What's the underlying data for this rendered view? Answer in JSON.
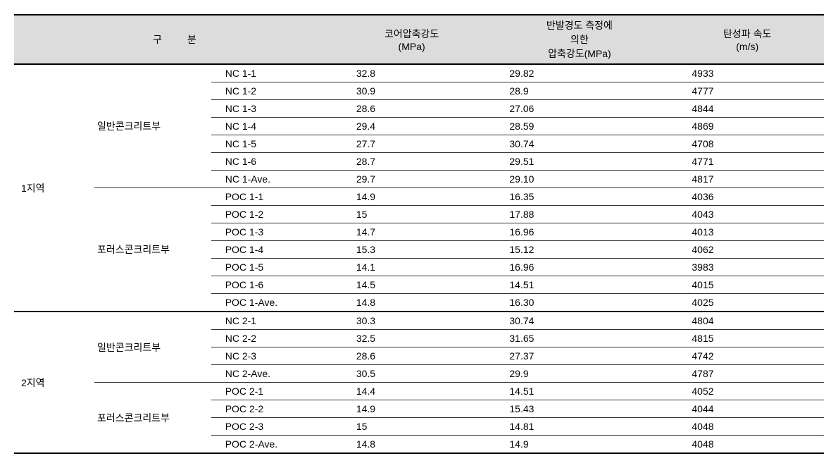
{
  "header": {
    "group_label": "구 분",
    "col1_line1": "코어압축강도",
    "col1_line2": "(MPa)",
    "col2_line1": "반발경도  측정에",
    "col2_line2": "의한",
    "col2_line3": "압축강도(MPa)",
    "col3_line1": "탄성파 속도",
    "col3_line2": "(m/s)"
  },
  "regions": [
    {
      "name": "1지역",
      "sections": [
        {
          "name": "일반콘크리트부",
          "rows": [
            {
              "id": "NC 1-1",
              "v1": "32.8",
              "v2": "29.82",
              "v3": "4933"
            },
            {
              "id": "NC 1-2",
              "v1": "30.9",
              "v2": "28.9",
              "v3": "4777"
            },
            {
              "id": "NC 1-3",
              "v1": "28.6",
              "v2": "27.06",
              "v3": "4844"
            },
            {
              "id": "NC 1-4",
              "v1": "29.4",
              "v2": "28.59",
              "v3": "4869"
            },
            {
              "id": "NC 1-5",
              "v1": "27.7",
              "v2": "30.74",
              "v3": "4708"
            },
            {
              "id": "NC 1-6",
              "v1": "28.7",
              "v2": "29.51",
              "v3": "4771"
            },
            {
              "id": "NC 1-Ave.",
              "v1": "29.7",
              "v2": "29.10",
              "v3": "4817"
            }
          ]
        },
        {
          "name": "포러스콘크리트부",
          "rows": [
            {
              "id": "POC 1-1",
              "v1": "14.9",
              "v2": "16.35",
              "v3": "4036"
            },
            {
              "id": "POC 1-2",
              "v1": "15",
              "v2": "17.88",
              "v3": "4043"
            },
            {
              "id": "POC 1-3",
              "v1": "14.7",
              "v2": "16.96",
              "v3": "4013"
            },
            {
              "id": "POC 1-4",
              "v1": "15.3",
              "v2": "15.12",
              "v3": "4062"
            },
            {
              "id": "POC 1-5",
              "v1": "14.1",
              "v2": "16.96",
              "v3": "3983"
            },
            {
              "id": "POC 1-6",
              "v1": "14.5",
              "v2": "14.51",
              "v3": "4015"
            },
            {
              "id": "POC 1-Ave.",
              "v1": "14.8",
              "v2": "16.30",
              "v3": "4025"
            }
          ]
        }
      ]
    },
    {
      "name": "2지역",
      "sections": [
        {
          "name": "일반콘크리트부",
          "rows": [
            {
              "id": "NC 2-1",
              "v1": "30.3",
              "v2": "30.74",
              "v3": "4804"
            },
            {
              "id": "NC 2-2",
              "v1": "32.5",
              "v2": "31.65",
              "v3": "4815"
            },
            {
              "id": "NC 2-3",
              "v1": "28.6",
              "v2": "27.37",
              "v3": "4742"
            },
            {
              "id": "NC 2-Ave.",
              "v1": "30.5",
              "v2": "29.9",
              "v3": "4787"
            }
          ]
        },
        {
          "name": "포러스콘크리트부",
          "rows": [
            {
              "id": "POC 2-1",
              "v1": "14.4",
              "v2": "14.51",
              "v3": "4052"
            },
            {
              "id": "POC 2-2",
              "v1": "14.9",
              "v2": "15.43",
              "v3": "4044"
            },
            {
              "id": "POC 2-3",
              "v1": "15",
              "v2": "14.81",
              "v3": "4048"
            },
            {
              "id": "POC 2-Ave.",
              "v1": "14.8",
              "v2": "14.9",
              "v3": "4048"
            }
          ]
        }
      ]
    }
  ]
}
